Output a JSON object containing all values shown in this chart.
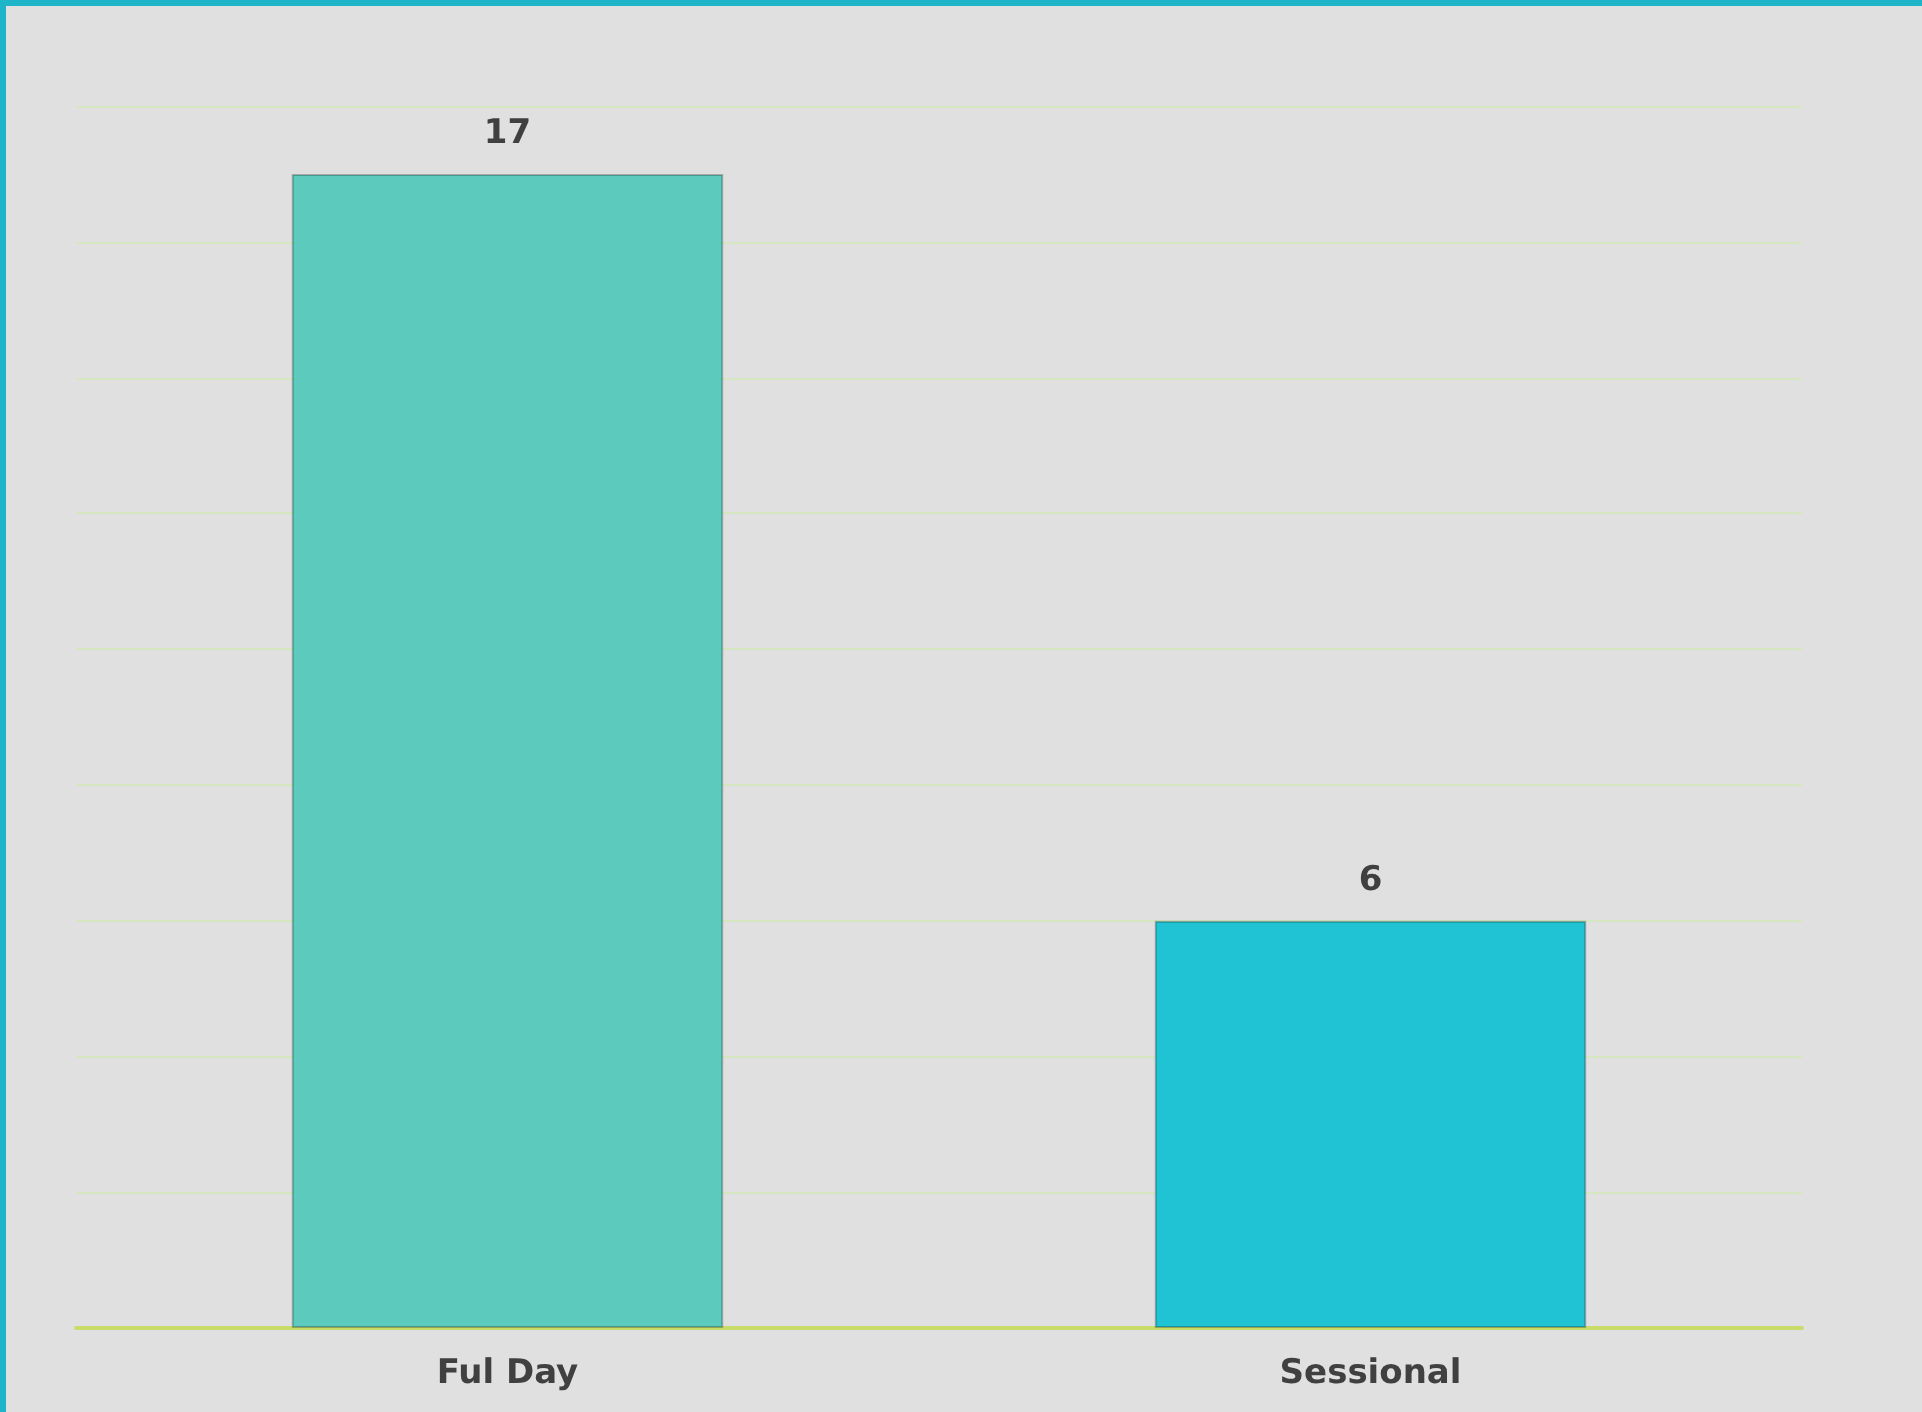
{
  "chart_data": {
    "type": "bar",
    "categories": [
      "Ful Day",
      "Sessional"
    ],
    "values": [
      17,
      6
    ],
    "colors": [
      "#5ccbbd",
      "#1fc3d4"
    ],
    "data_labels": true,
    "ylim": [
      0,
      18
    ],
    "yticks": [
      {
        "value": 0,
        "label": null
      },
      {
        "value": 2,
        "label": null
      },
      {
        "value": 4,
        "label": null
      },
      {
        "value": 6,
        "label": null
      },
      {
        "value": 8,
        "label": null
      },
      {
        "value": 10,
        "label": null
      },
      {
        "value": 12,
        "label": null
      },
      {
        "value": 14,
        "label": null
      },
      {
        "value": 16,
        "label": null
      },
      {
        "value": 18,
        "label": null
      }
    ],
    "grid": "y",
    "tick_labels": "x"
  }
}
